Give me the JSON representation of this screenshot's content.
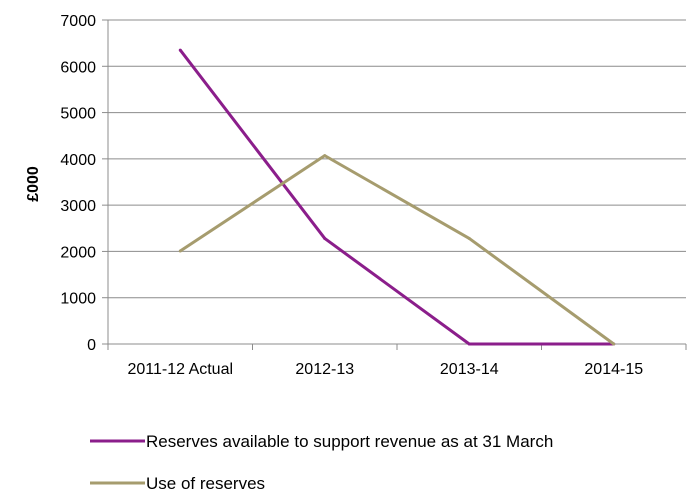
{
  "chart_data": {
    "type": "line",
    "categories": [
      "2011-12 Actual",
      "2012-13",
      "2013-14",
      "2014-15"
    ],
    "series": [
      {
        "name": "Reserves available to support revenue as at 31 March",
        "values": [
          6350,
          2280,
          0,
          0
        ],
        "color": "#8B1E8B"
      },
      {
        "name": "Use of reserves",
        "values": [
          2010,
          4070,
          2280,
          0
        ],
        "color": "#A69C6E"
      }
    ],
    "title": "",
    "xlabel": "",
    "ylabel": "£000",
    "ylim": [
      0,
      7000
    ],
    "yticks": [
      0,
      1000,
      2000,
      3000,
      4000,
      5000,
      6000,
      7000
    ],
    "grid": true,
    "legend_position": "bottom"
  }
}
